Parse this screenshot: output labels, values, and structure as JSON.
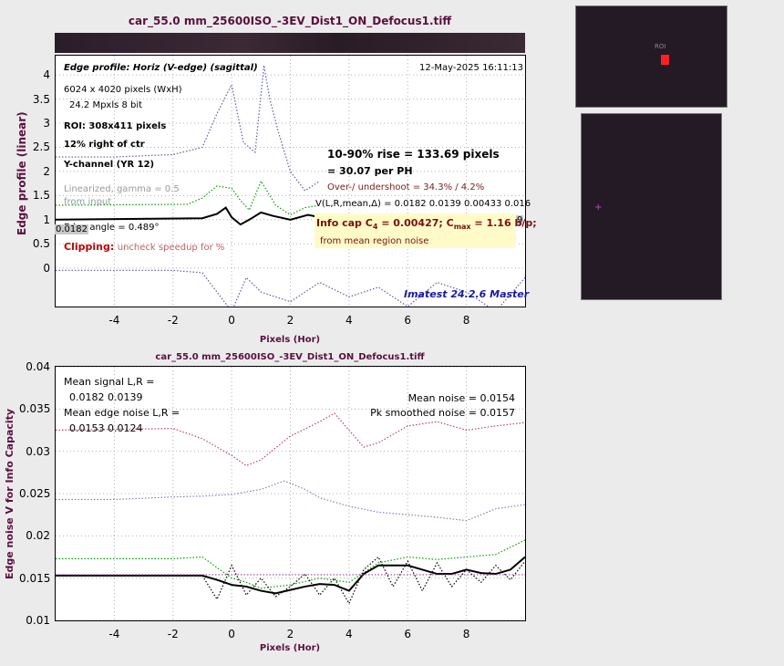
{
  "colors": {
    "title": "#5a1040",
    "edge": "#000000",
    "green": "#00a000",
    "blue": "#5a5ab4",
    "pink": "#c04060",
    "red": "#c00000",
    "navy": "#1a1aa0"
  },
  "top_title": "car_55.0 mm_25600ISO_-3EV_Dist1_ON_Defocus1.tiff",
  "top_panel": {
    "ylabel": "Edge profile (linear)",
    "xlabel": "Pixels (Hor)",
    "profile_title": "Edge profile: Horiz (V-edge) (sagittal)",
    "date": "12-May-2025 16:11:13",
    "size": "6024 x 4020 pixels (WxH)",
    "mpxls": "24.2 Mpxls   8 bit",
    "roi": "ROI:  308x411 pixels",
    "position": "12% right of ctr",
    "channel": "Y-channel  (YR 12)",
    "linearized": "Linearized, gamma = 0.5",
    "from_input": "from input",
    "edge_angle": "Edge angle = 0.489°",
    "left_val": "0.0182",
    "right_val": "9",
    "clipping_label": "Clipping:",
    "clipping_text": "uncheck speedup for %",
    "rise": "10-90% rise = 133.69 pixels",
    "per_ph": "=  30.07 per PH",
    "overshoot": "Over-/ undershoot = 34.3% /  4.2%",
    "vlr": "V(L,R,mean,Δ) = 0.0182  0.0139  0.00433  0.016",
    "infocap_pre": "Info cap C",
    "infocap_sub": "4",
    "infocap_mid": " = 0.00427;  C",
    "infocap_sub2": "max",
    "infocap_post": " = 1.16 b/p;",
    "region_noise": "from mean region noise",
    "brand": "Imatest 24.2.6 Master",
    "thumb_label": "ROI"
  },
  "bottom_panel": {
    "title": "car_55.0 mm_25600ISO_-3EV_Dist1_ON_Defocus1.tiff",
    "ylabel": "Edge noise V for Info Capacity",
    "xlabel": "Pixels (Hor)",
    "mean_signal_label": "Mean signal L,R =",
    "mean_signal_vals": "0.0182  0.0139",
    "mean_edge_label": "Mean edge noise L,R =",
    "mean_edge_vals": "0.0153  0.0124",
    "mean_noise": "Mean noise = 0.0154",
    "pk_noise": "Pk smoothed noise = 0.0157"
  },
  "chart_data": [
    {
      "type": "line",
      "title": "car_55.0 mm_25600ISO_-3EV_Dist1_ON_Defocus1.tiff",
      "xlabel": "Pixels (Hor)",
      "ylabel": "Edge profile (linear)",
      "xlim": [
        -6,
        10
      ],
      "ylim": [
        -0.8,
        4.4
      ],
      "xticks": [
        -4,
        -2,
        0,
        2,
        4,
        6,
        8
      ],
      "yticks": [
        0,
        0.5,
        1,
        1.5,
        2,
        2.5,
        3,
        3.5,
        4
      ],
      "grid": true,
      "series": [
        {
          "color": "#000000",
          "style": "solid",
          "x": [
            -6,
            -1,
            -0.5,
            -0.2,
            0,
            0.3,
            0.6,
            1,
            1.4,
            2,
            2.6,
            3,
            3.5,
            4
          ],
          "y": [
            1.0,
            1.03,
            1.12,
            1.25,
            1.05,
            0.9,
            1.0,
            1.15,
            1.08,
            1.0,
            1.1,
            1.05,
            1.0,
            1.05
          ]
        },
        {
          "color": "#00a000",
          "style": "dotted",
          "x": [
            -6,
            -1.5,
            -1,
            -0.5,
            0,
            0.3,
            0.6,
            1,
            1.5,
            2,
            2.5,
            3
          ],
          "y": [
            1.3,
            1.32,
            1.45,
            1.7,
            1.65,
            1.4,
            1.2,
            1.8,
            1.3,
            1.1,
            1.25,
            1.3
          ]
        },
        {
          "color": "#5a5ab4",
          "style": "dotted",
          "x": [
            -6,
            -4,
            -2,
            -1,
            -0.5,
            0,
            0.4,
            0.8,
            1.1,
            1.3,
            1.6,
            2,
            2.5,
            3
          ],
          "y": [
            2.3,
            2.3,
            2.35,
            2.5,
            3.2,
            3.8,
            2.6,
            2.4,
            4.2,
            3.5,
            2.8,
            2.0,
            1.6,
            1.8
          ]
        },
        {
          "color": "#5a5ab4",
          "style": "dotted",
          "x": [
            -6,
            -4,
            -2,
            -1,
            0,
            0.5,
            1,
            2,
            3,
            4,
            5,
            6,
            7,
            8,
            9,
            10
          ],
          "y": [
            -0.05,
            -0.05,
            -0.05,
            -0.1,
            -0.9,
            -0.2,
            -0.5,
            -0.7,
            -0.3,
            -0.6,
            -0.4,
            -0.8,
            -0.3,
            -0.5,
            -0.9,
            -0.2
          ]
        }
      ]
    },
    {
      "type": "line",
      "title": "car_55.0 mm_25600ISO_-3EV_Dist1_ON_Defocus1.tiff",
      "xlabel": "Pixels (Hor)",
      "ylabel": "Edge noise V for Info Capacity",
      "xlim": [
        -6,
        10
      ],
      "ylim": [
        0.01,
        0.04
      ],
      "xticks": [
        -4,
        -2,
        0,
        2,
        4,
        6,
        8
      ],
      "yticks": [
        0.01,
        0.015,
        0.02,
        0.025,
        0.03,
        0.035,
        0.04
      ],
      "grid": true,
      "series": [
        {
          "color": "#c04060",
          "style": "dotted",
          "x": [
            -6,
            -4,
            -2,
            -1,
            0,
            0.5,
            1,
            2,
            3,
            3.5,
            4,
            4.5,
            5,
            6,
            7,
            8,
            9,
            10
          ],
          "y": [
            0.0325,
            0.0326,
            0.0327,
            0.0315,
            0.0295,
            0.0283,
            0.029,
            0.0318,
            0.0335,
            0.0345,
            0.0325,
            0.0305,
            0.031,
            0.033,
            0.0335,
            0.0325,
            0.033,
            0.0334
          ]
        },
        {
          "color": "#8080c0",
          "style": "dotted",
          "x": [
            -6,
            -4,
            -2,
            -1,
            0,
            1,
            1.8,
            2.5,
            3,
            4,
            5,
            6,
            7,
            8,
            9,
            10
          ],
          "y": [
            0.0243,
            0.0243,
            0.0246,
            0.0247,
            0.0249,
            0.0255,
            0.0265,
            0.0255,
            0.0245,
            0.0235,
            0.0228,
            0.0225,
            0.0222,
            0.0218,
            0.0232,
            0.0237
          ]
        },
        {
          "color": "#00a000",
          "style": "dotted",
          "x": [
            -6,
            -4,
            -2,
            -1,
            0,
            0.5,
            1,
            2,
            3,
            4,
            5,
            6,
            7,
            8,
            9,
            10
          ],
          "y": [
            0.0173,
            0.0173,
            0.0173,
            0.0175,
            0.015,
            0.0145,
            0.0138,
            0.0142,
            0.015,
            0.0145,
            0.0168,
            0.0175,
            0.0172,
            0.0175,
            0.0178,
            0.0195
          ]
        },
        {
          "color": "#000000",
          "style": "solid",
          "x": [
            -6,
            -2,
            -1,
            -0.5,
            0,
            0.5,
            1,
            1.5,
            2,
            2.5,
            3,
            3.5,
            4,
            4.5,
            5,
            5.5,
            6,
            6.5,
            7,
            7.5,
            8,
            8.5,
            9,
            9.5,
            10
          ],
          "y": [
            0.0153,
            0.0153,
            0.0153,
            0.0148,
            0.0142,
            0.014,
            0.0135,
            0.0132,
            0.0136,
            0.014,
            0.0143,
            0.0142,
            0.0135,
            0.0155,
            0.0165,
            0.0165,
            0.0165,
            0.016,
            0.0155,
            0.0155,
            0.016,
            0.0156,
            0.0155,
            0.016,
            0.0175
          ]
        },
        {
          "color": "#000000",
          "style": "dotted",
          "x": [
            -6,
            -2,
            -1,
            -0.5,
            0,
            0.5,
            1,
            1.5,
            2,
            2.5,
            3,
            3.5,
            4,
            4.5,
            5,
            5.5,
            6,
            6.5,
            7,
            7.5,
            8,
            8.5,
            9,
            9.5,
            10
          ],
          "y": [
            0.0153,
            0.0153,
            0.0153,
            0.0125,
            0.0165,
            0.013,
            0.015,
            0.0128,
            0.014,
            0.0155,
            0.013,
            0.015,
            0.012,
            0.016,
            0.0175,
            0.014,
            0.017,
            0.0135,
            0.0168,
            0.014,
            0.016,
            0.0145,
            0.0165,
            0.0148,
            0.017
          ]
        },
        {
          "color": "#a040a0",
          "style": "dotted",
          "x": [
            -6,
            10
          ],
          "y": [
            0.0154,
            0.0154
          ]
        }
      ]
    }
  ]
}
